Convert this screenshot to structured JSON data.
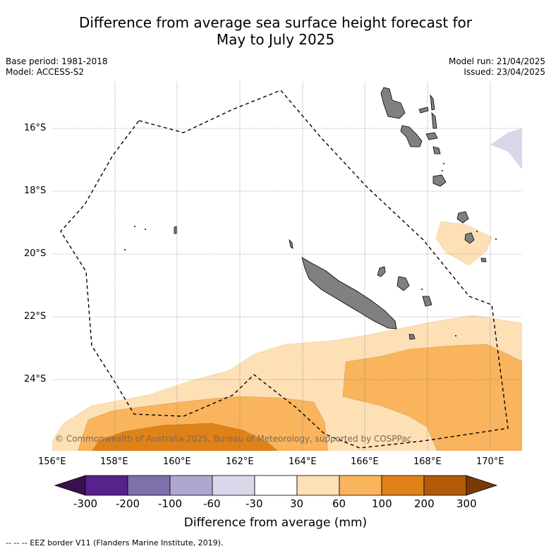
{
  "title_line1": "Difference from average sea surface height forecast for",
  "title_line2": "May to July 2025",
  "base_period": "Base period: 1981-2018",
  "model": "Model: ACCESS-S2",
  "model_run": "Model run: 21/04/2025",
  "issued": "Issued: 23/04/2025",
  "lat_labels": [
    "16°S",
    "18°S",
    "20°S",
    "22°S",
    "24°S"
  ],
  "lon_labels": [
    "156°E",
    "158°E",
    "160°E",
    "162°E",
    "164°E",
    "166°E",
    "168°E",
    "170°E"
  ],
  "copyright": "© Commonwealth of Australia 2025, Bureau of Meteorology, supported by COSPPac",
  "colorbar": {
    "ticks": [
      "-300",
      "-200",
      "-100",
      "-60",
      "-30",
      "30",
      "60",
      "100",
      "200",
      "300"
    ],
    "colors": [
      "#3b0f4f",
      "#58228c",
      "#7f70ac",
      "#aea7d0",
      "#d8d8ea",
      "#ffffff",
      "#fde0b6",
      "#f9b45d",
      "#e0821a",
      "#b05a0a",
      "#7a3a05"
    ],
    "title": "Difference from average (mm)"
  },
  "footer": "--  --  -- EEZ border V11 (Flanders Marine Institute, 2019)."
}
